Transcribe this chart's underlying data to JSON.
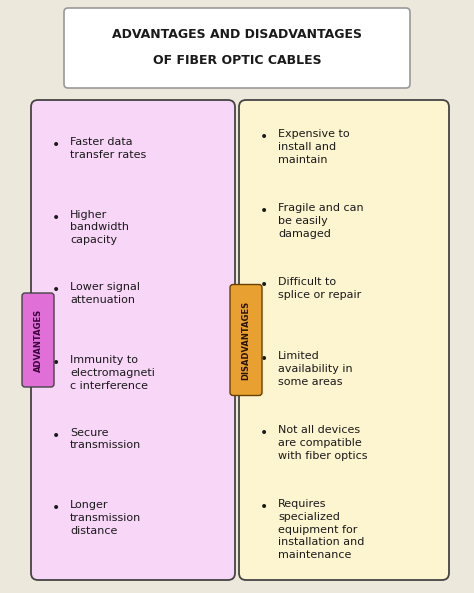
{
  "title_line1": "ADVANTAGES AND DISADVANTAGES",
  "title_line2": "OF FIBER OPTIC CABLES",
  "bg_color": "#ede8dc",
  "title_box_color": "#ffffff",
  "title_border_color": "#999999",
  "adv_box_color": "#f7d6f7",
  "adv_border_color": "#444444",
  "adv_label_bg": "#e070d8",
  "adv_label_text_color": "#3a003a",
  "adv_label": "ADVANTAGES",
  "disadv_box_color": "#fdf4d0",
  "disadv_border_color": "#444444",
  "disadv_label_bg": "#e8a030",
  "disadv_label_text_color": "#2a1500",
  "disadv_label": "DISADVANTAGES",
  "advantages": [
    "Faster data\ntransfer rates",
    "Higher\nbandwidth\ncapacity",
    "Lower signal\nattenuation",
    "Immunity to\nelectromagneti\nc interference",
    "Secure\ntransmission",
    "Longer\ntransmission\ndistance"
  ],
  "disadvantages": [
    "Expensive to\ninstall and\nmaintain",
    "Fragile and can\nbe easily\ndamaged",
    "Difficult to\nsplice or repair",
    "Limited\navailability in\nsome areas",
    "Not all devices\nare compatible\nwith fiber optics",
    "Requires\nspecialized\nequipment for\ninstallation and\nmaintenance"
  ],
  "text_color": "#1a1a1a",
  "bullet": "•",
  "fig_w": 4.74,
  "fig_h": 5.93,
  "dpi": 100
}
